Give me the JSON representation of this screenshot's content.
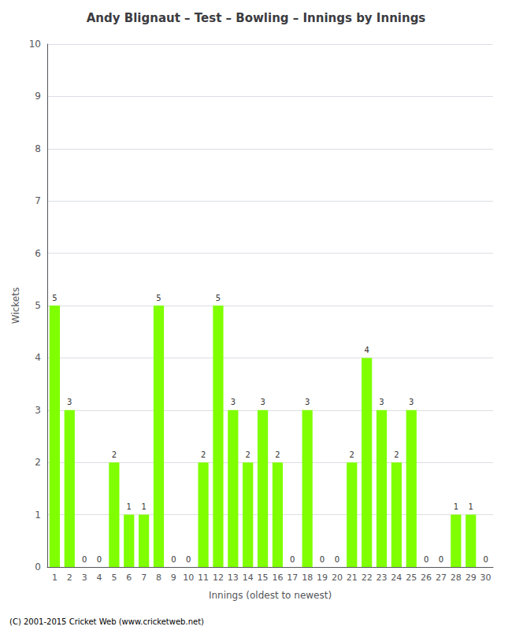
{
  "chart_data": {
    "type": "bar",
    "title": "Andy Blignaut – Test – Bowling – Innings by Innings",
    "x_label": "Innings (oldest to newest)",
    "y_label": "Wickets",
    "categories": [
      1,
      2,
      3,
      4,
      5,
      6,
      7,
      8,
      9,
      10,
      11,
      12,
      13,
      14,
      15,
      16,
      17,
      18,
      19,
      20,
      21,
      22,
      23,
      24,
      25,
      26,
      27,
      28,
      29,
      30
    ],
    "values": [
      5,
      3,
      0,
      0,
      2,
      1,
      1,
      5,
      0,
      0,
      2,
      5,
      3,
      2,
      3,
      2,
      0,
      3,
      0,
      0,
      2,
      4,
      3,
      2,
      3,
      0,
      0,
      1,
      1,
      0
    ],
    "color": "#7FFF00",
    "ylim": [
      0,
      10
    ],
    "yticks": [
      0,
      1,
      2,
      3,
      4,
      5,
      6,
      7,
      8,
      9,
      10
    ],
    "grid": true,
    "data_labels": true,
    "annotations": [
      "(C) 2001-2015 Cricket Web (www.cricketweb.net)"
    ]
  }
}
